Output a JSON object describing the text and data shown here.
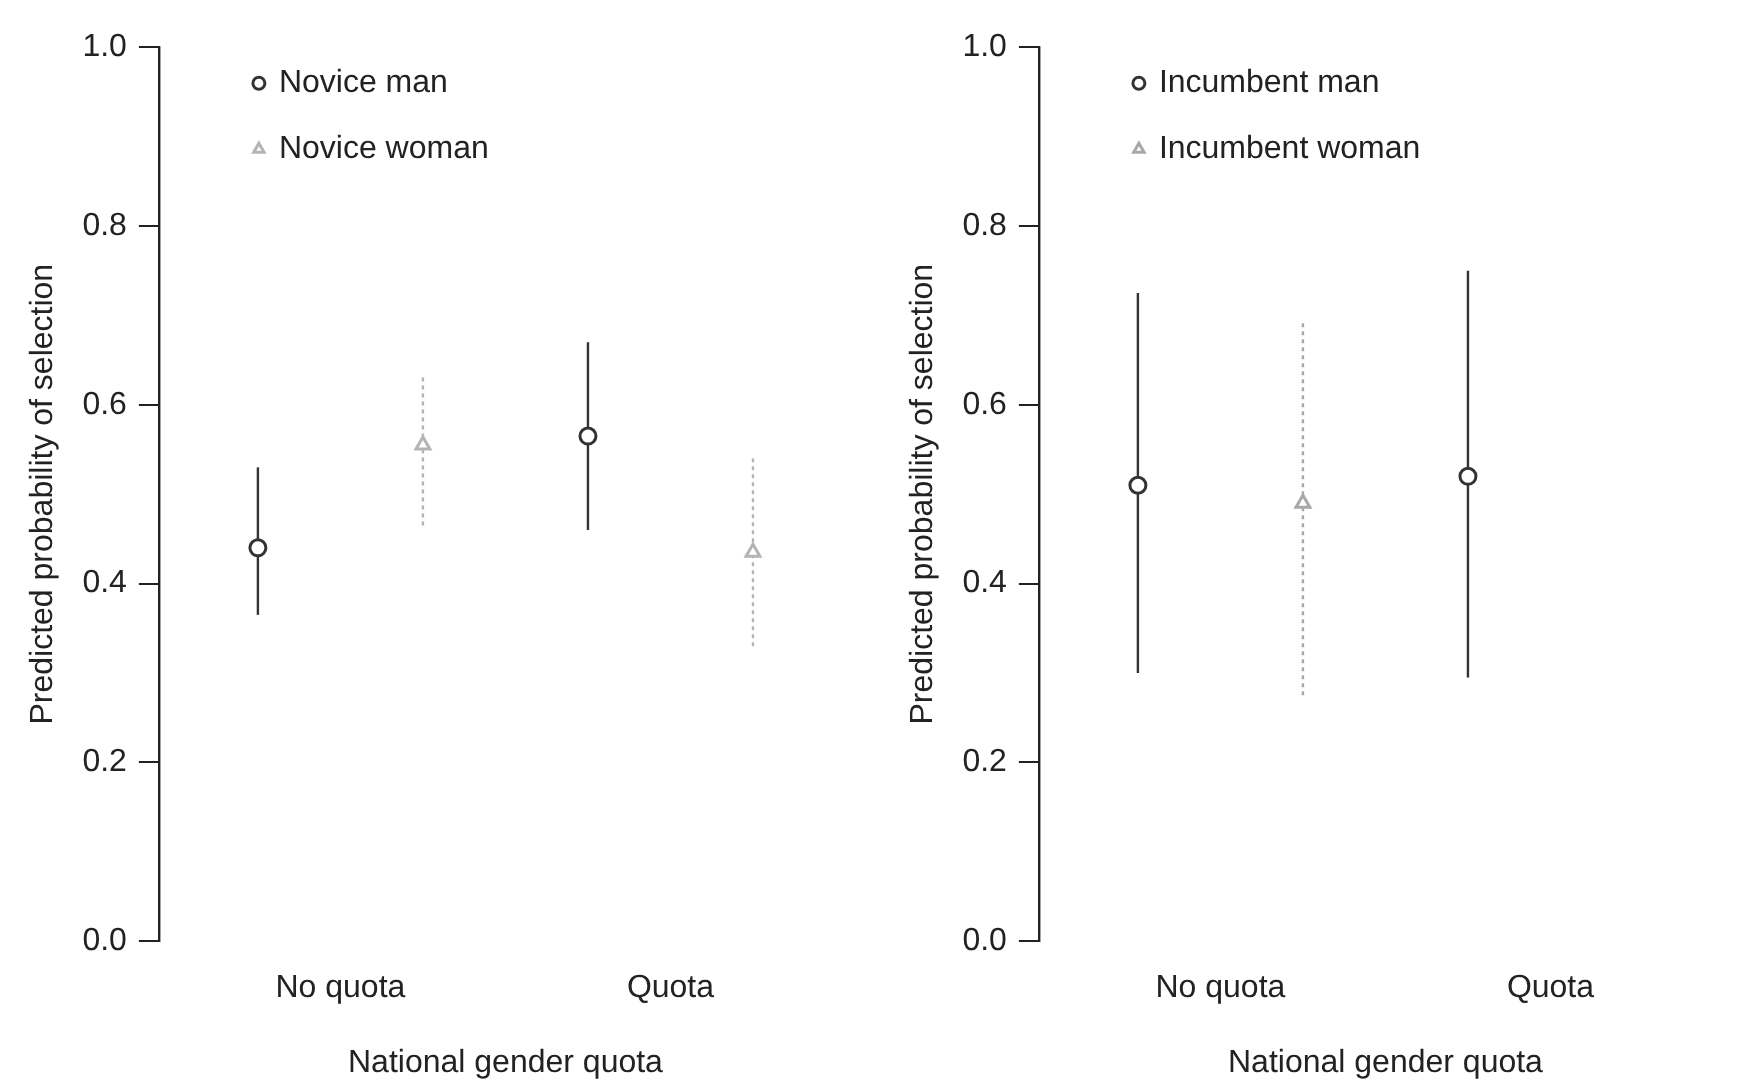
{
  "chart_data": [
    {
      "type": "scatter",
      "categories": [
        "No quota",
        "Quota"
      ],
      "xlabel": "National gender quota",
      "ylabel": "Predicted probability of selection",
      "ylim": [
        0,
        1
      ],
      "yticks": [
        {
          "value": 0,
          "label": "0.0"
        },
        {
          "value": 0.2,
          "label": "0.2"
        },
        {
          "value": 0.4,
          "label": "0.4"
        },
        {
          "value": 0.6,
          "label": "0.6"
        },
        {
          "value": 0.8,
          "label": "0.8"
        },
        {
          "value": 1,
          "label": "1.0"
        }
      ],
      "grid": false,
      "legend": "top left",
      "series": [
        {
          "name": "Novice man",
          "color": "#333333",
          "marker": "circle",
          "line_style": "solid",
          "values": [
            0.44,
            0.565
          ],
          "errors": [
            [
              0.365,
              0.53
            ],
            [
              0.46,
              0.67
            ]
          ]
        },
        {
          "name": "Novice woman",
          "color": "#b4b4b4",
          "marker": "triangle",
          "line_style": "dotted",
          "values": [
            0.555,
            0.435
          ],
          "errors": [
            [
              0.465,
              0.635
            ],
            [
              0.33,
              0.54
            ]
          ]
        }
      ]
    },
    {
      "type": "scatter",
      "categories": [
        "No quota",
        "Quota"
      ],
      "xlabel": "National gender quota",
      "ylabel": "Predicted probability of selection",
      "ylim": [
        0,
        1
      ],
      "yticks": [
        {
          "value": 0,
          "label": "0.0"
        },
        {
          "value": 0.2,
          "label": "0.2"
        },
        {
          "value": 0.4,
          "label": "0.4"
        },
        {
          "value": 0.6,
          "label": "0.6"
        },
        {
          "value": 0.8,
          "label": "0.8"
        },
        {
          "value": 1,
          "label": "1.0"
        }
      ],
      "grid": false,
      "legend": "top left",
      "series": [
        {
          "name": "Incumbent man",
          "color": "#333333",
          "marker": "circle",
          "line_style": "solid",
          "values": [
            0.51,
            0.52
          ],
          "errors": [
            [
              0.3,
              0.725
            ],
            [
              0.295,
              0.75
            ]
          ]
        },
        {
          "name": "Incumbent woman",
          "color": "#a8a8a8",
          "marker": "triangle",
          "line_style": "dotted",
          "values": [
            0.49,
            null
          ],
          "errors": [
            [
              0.275,
              0.695
            ],
            null
          ]
        }
      ]
    }
  ]
}
